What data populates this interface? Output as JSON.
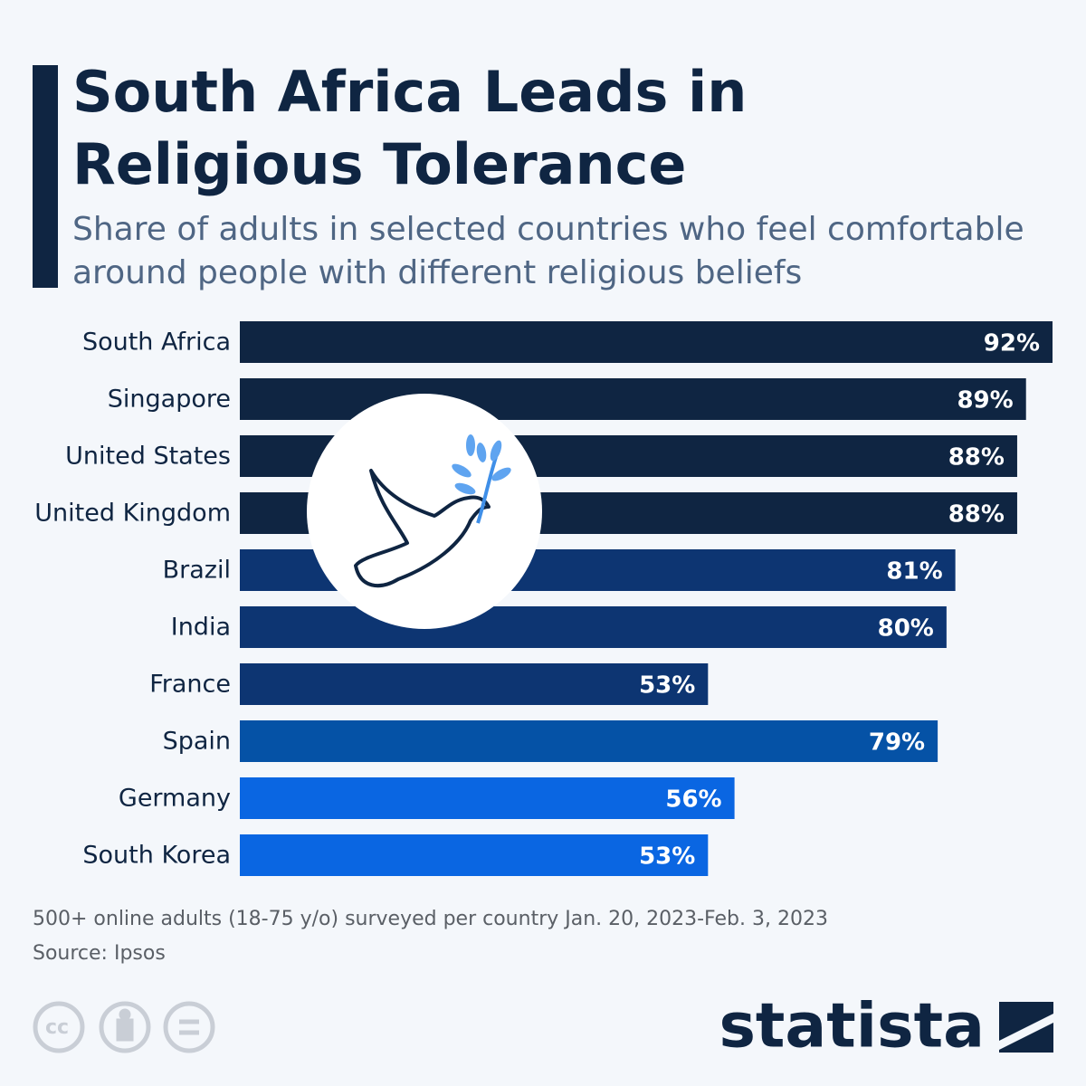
{
  "chart_data": {
    "type": "bar",
    "orientation": "horizontal",
    "title": "South Africa Leads in Religious Tolerance",
    "subtitle": "Share of adults in selected countries who feel comfortable around people with different religious beliefs",
    "categories": [
      "South Africa",
      "Singapore",
      "United States",
      "United Kingdom",
      "Brazil",
      "India",
      "France",
      "Spain",
      "Germany",
      "South Korea"
    ],
    "values": [
      92,
      89,
      88,
      88,
      81,
      80,
      53,
      79,
      56,
      53
    ],
    "value_labels": [
      "92%",
      "89%",
      "88%",
      "88%",
      "81%",
      "80%",
      "53%",
      "79%",
      "56%",
      "53%"
    ],
    "colors": [
      "#0f2542",
      "#0f2542",
      "#0f2542",
      "#0f2542",
      "#0d3572",
      "#0d3572",
      "#0d3572",
      "#0552a6",
      "#0a66e2",
      "#0a66e2"
    ],
    "notes": [
      "500+ online adults (18-75 y/o) surveyed per country Jan. 20, 2023-Feb. 3, 2023",
      "Source: Ipsos"
    ],
    "brand": "statista"
  }
}
